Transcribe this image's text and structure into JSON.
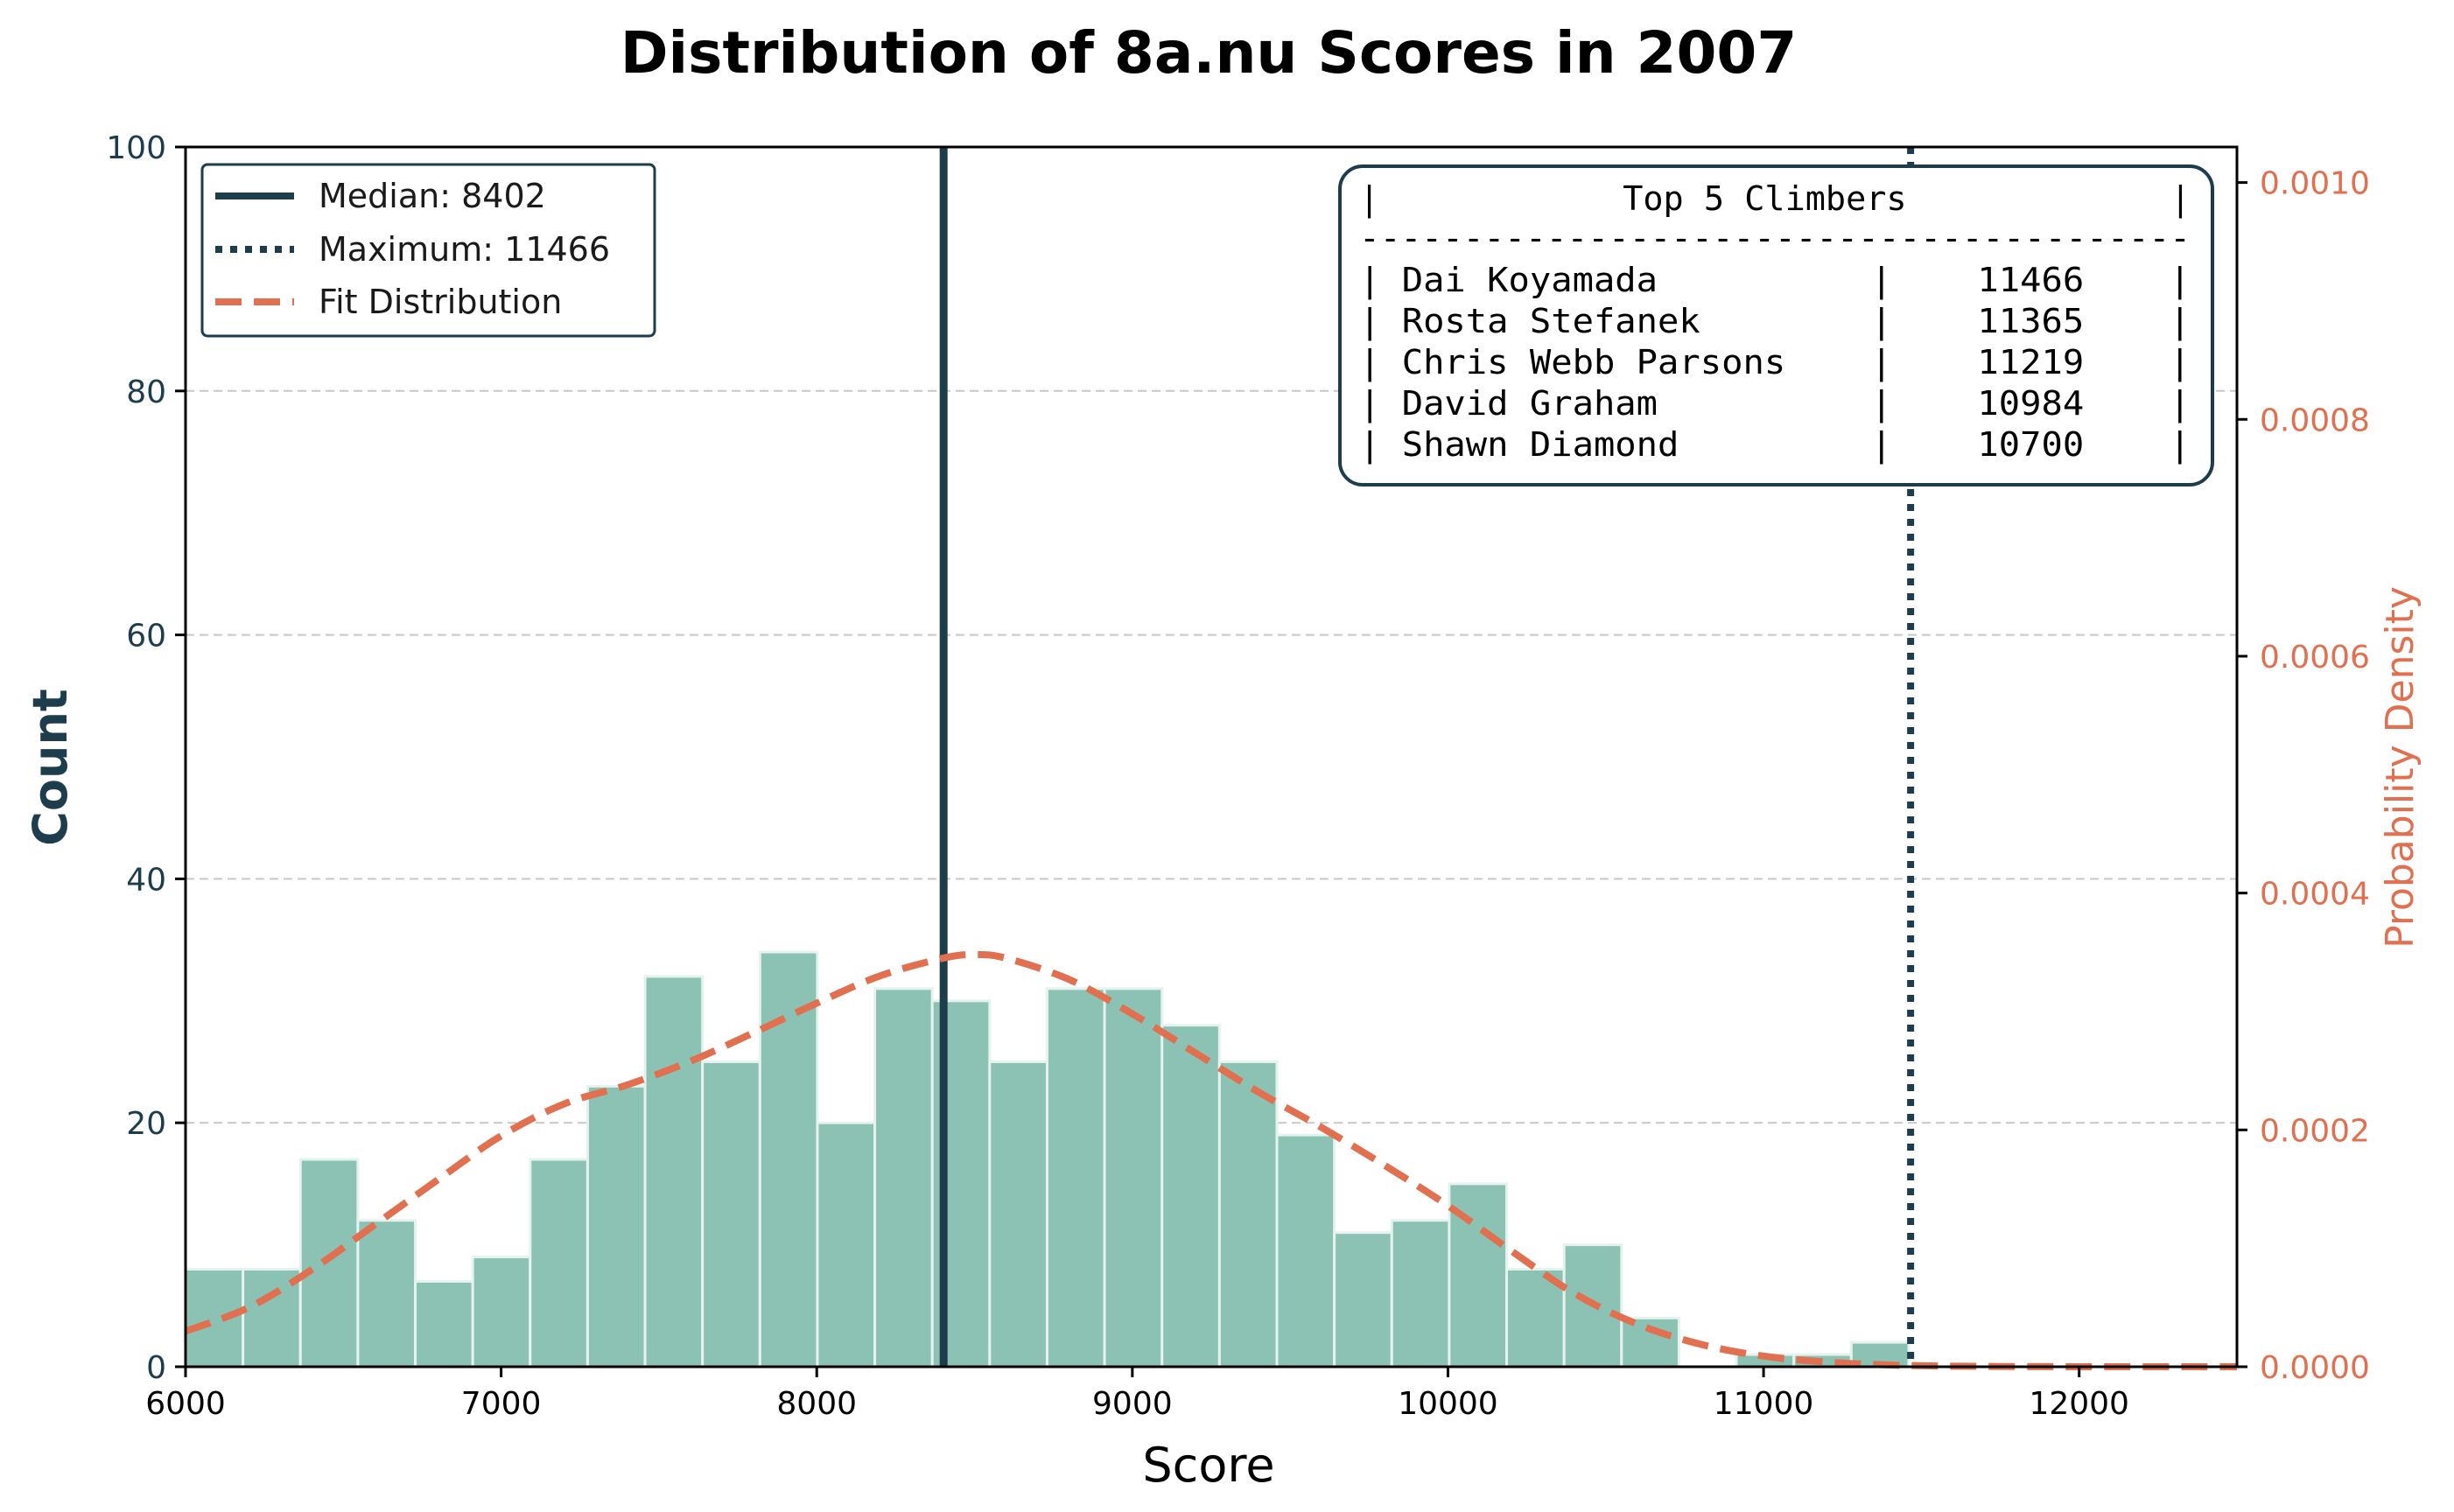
{
  "chart_data": {
    "type": "bar",
    "title": "Distribution of 8a.nu Scores in 2007",
    "xlabel": "Score",
    "ylabel": "Count",
    "y2label": "Probability Density",
    "xlim": [
      6000,
      12500
    ],
    "ylim": [
      0,
      100
    ],
    "y2lim": [
      0,
      0.00103
    ],
    "x_ticks": [
      "6000",
      "7000",
      "8000",
      "9000",
      "10000",
      "11000",
      "12000"
    ],
    "y_ticks": [
      "0",
      "20",
      "40",
      "60",
      "80",
      "100"
    ],
    "y2_ticks": [
      "0.0000",
      "0.0002",
      "0.0004",
      "0.0006",
      "0.0008",
      "0.0010"
    ],
    "grid": "horizontal dashed",
    "colors": {
      "bars": "#8bc2b3",
      "bar_edge": "#e6f2ee",
      "median_line": "#1e3d4c",
      "max_line": "#1e3d4c",
      "fit_line": "#e07050",
      "left_axis": "#1e3d4c",
      "right_axis": "#e07050"
    },
    "histogram": {
      "bin_start": 6000,
      "bin_width": 182,
      "counts": [
        8,
        8,
        17,
        12,
        7,
        9,
        17,
        23,
        32,
        25,
        34,
        20,
        31,
        30,
        25,
        31,
        31,
        28,
        25,
        19,
        11,
        12,
        15,
        8,
        10,
        4,
        0,
        1,
        1,
        2
      ]
    },
    "median": 8402,
    "maximum": 11466,
    "fit": {
      "x": [
        6000,
        6200,
        6400,
        6600,
        6800,
        7000,
        7200,
        7400,
        7600,
        7800,
        8000,
        8200,
        8400,
        8500,
        8600,
        8800,
        9000,
        9200,
        9400,
        9600,
        9800,
        10000,
        10200,
        10400,
        10600,
        10800,
        11000,
        11200,
        11400,
        11600,
        12000,
        12500
      ],
      "y": [
        3e-05,
        5e-05,
        8.2e-05,
        0.00012,
        0.000158,
        0.000195,
        0.000222,
        0.000238,
        0.000258,
        0.000282,
        0.000307,
        0.00033,
        0.000345,
        0.000348,
        0.000345,
        0.000327,
        0.000298,
        0.000265,
        0.000232,
        0.000202,
        0.00017,
        0.000136,
        9.8e-05,
        6.2e-05,
        3.6e-05,
        1.9e-05,
        9e-06,
        4e-06,
        1.5e-06,
        5e-07,
        0.0,
        0.0
      ]
    },
    "legend": {
      "position": "upper-left",
      "entries": [
        "Median: 8402",
        "Maximum: 11466",
        "Fit Distribution"
      ]
    },
    "table": {
      "title_row": "|            Top 5 Climbers             |",
      "separator": "----------------------------------------",
      "rows": [
        "| Dai Koyamada          |    11466    |",
        "| Rosta Stefanek        |    11365    |",
        "| Chris Webb Parsons    |    11219    |",
        "| David Graham          |    10984    |",
        "| Shawn Diamond         |    10700    |"
      ]
    }
  }
}
